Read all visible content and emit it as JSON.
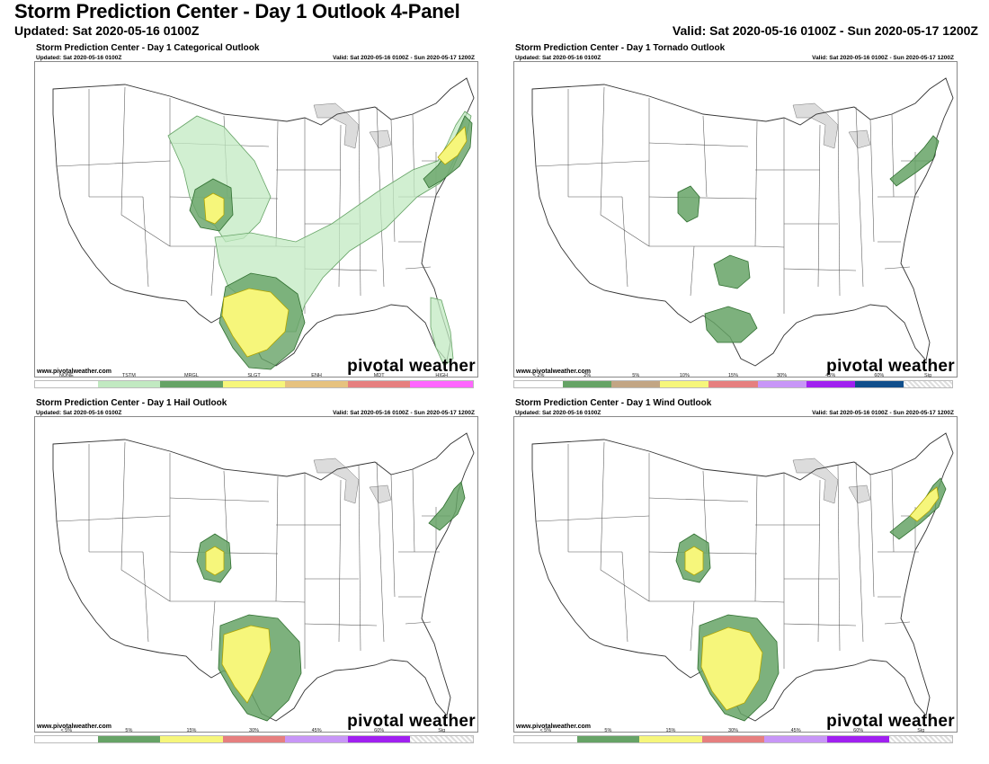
{
  "header": {
    "title": "Storm Prediction Center - Day 1 Outlook 4-Panel",
    "updated": "Updated: Sat 2020-05-16 0100Z",
    "valid": "Valid: Sat 2020-05-16 0100Z - Sun 2020-05-17 1200Z"
  },
  "colors": {
    "tstm": "#c1e9c1",
    "mrgl": "#66a366",
    "slgt": "#f6f67b",
    "enh": "#e6c27f",
    "mdt": "#e67f7f",
    "high": "#ff66ff",
    "p2": "#66a366",
    "p5": "#c2a584",
    "p10": "#f6f67b",
    "p15": "#e67f7f",
    "p30": "#c896f7",
    "p45": "#a020f0",
    "p60": "#104e8b",
    "hail5": "#66a366",
    "hail15": "#f6f67b",
    "hail30": "#e67f7f",
    "hail45": "#c896f7",
    "hail60": "#a020f0"
  },
  "panels": [
    {
      "title": "Storm Prediction Center - Day 1 Categorical Outlook",
      "updated": "Updated: Sat 2020-05-16 0100Z",
      "valid": "Valid: Sat 2020-05-16 0100Z - Sun 2020-05-17 1200Z",
      "credit": "www.pivotalweather.com",
      "brand": "pivotal weather",
      "legend": [
        "NONE",
        "TSTM",
        "MRGL",
        "SLGT",
        "ENH",
        "MDT",
        "HIGH"
      ]
    },
    {
      "title": "Storm Prediction Center - Day 1 Tornado Outlook",
      "updated": "Updated: Sat 2020-05-16 0100Z",
      "valid": "Valid: Sat 2020-05-16 0100Z - Sun 2020-05-17 1200Z",
      "credit": "www.pivotalweather.com",
      "brand": "pivotal weather",
      "legend": [
        "< 2%",
        "2%",
        "5%",
        "10%",
        "15%",
        "30%",
        "45%",
        "60%",
        "Sig"
      ]
    },
    {
      "title": "Storm Prediction Center - Day 1 Hail Outlook",
      "updated": "Updated: Sat 2020-05-16 0100Z",
      "valid": "Valid: Sat 2020-05-16 0100Z - Sun 2020-05-17 1200Z",
      "credit": "www.pivotalweather.com",
      "brand": "pivotal weather",
      "legend": [
        "< 5%",
        "5%",
        "15%",
        "30%",
        "45%",
        "60%",
        "Sig"
      ]
    },
    {
      "title": "Storm Prediction Center - Day 1 Wind Outlook",
      "updated": "Updated: Sat 2020-05-16 0100Z",
      "valid": "Valid: Sat 2020-05-16 0100Z - Sun 2020-05-17 1200Z",
      "credit": "www.pivotalweather.com",
      "brand": "pivotal weather",
      "legend": [
        "< 5%",
        "5%",
        "15%",
        "30%",
        "45%",
        "60%",
        "Sig"
      ]
    }
  ]
}
